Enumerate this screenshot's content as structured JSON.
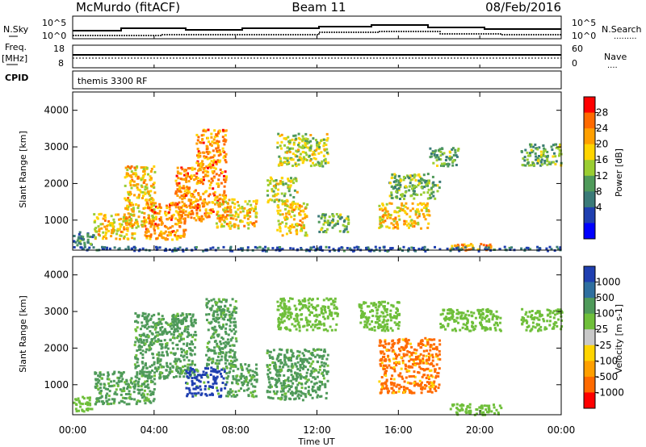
{
  "header": {
    "station": "McMurdo (fitACF)",
    "beam": "Beam 11",
    "date": "08/Feb/2016"
  },
  "noise_panel": {
    "left_label": "N.Sky",
    "right_label": "N.Search",
    "left_ticks": [
      "10^5",
      "10^0"
    ],
    "right_ticks": [
      "10^5",
      "10^0"
    ]
  },
  "freq_panel": {
    "left_label_line1": "Freq.",
    "left_label_line2": "[MHz]",
    "left_ticks": [
      "18",
      "8"
    ],
    "right_label": "Nave",
    "right_ticks": [
      "60",
      "0"
    ]
  },
  "cpid_panel": {
    "label": "CPID",
    "text": "themis 3300 RF"
  },
  "x_axis": {
    "label": "Time UT",
    "ticks": [
      "00:00",
      "04:00",
      "08:00",
      "12:00",
      "16:00",
      "20:00",
      "00:00"
    ]
  },
  "power_colorbar": {
    "label": "Power [dB]",
    "ticks": [
      "28",
      "24",
      "20",
      "16",
      "12",
      "8",
      "4"
    ],
    "colors": [
      "#ff0000",
      "#ff6a00",
      "#ff9f00",
      "#ffd400",
      "#9acd32",
      "#4f9a5a",
      "#3a7a78",
      "#1f3fb0",
      "#0000ff"
    ]
  },
  "velocity_colorbar": {
    "label": "Velocity [m s-1]",
    "ticks": [
      "1000",
      "500",
      "100",
      "25",
      "-25",
      "-100",
      "-500",
      "-1000"
    ],
    "colors": [
      "#1f3fb0",
      "#2f6f9f",
      "#4f9a5a",
      "#6fbf3a",
      "#c8c8c8",
      "#ffd400",
      "#ff9f00",
      "#ff6a00",
      "#ff0000"
    ]
  },
  "chart_data": [
    {
      "type": "heatmap",
      "name": "power",
      "ylabel": "Slant Range [km]",
      "xlabel": "Time UT",
      "ylim": [
        180,
        4500
      ],
      "xlim": [
        0,
        24
      ],
      "yticks": [
        "1000",
        "2000",
        "3000",
        "4000"
      ],
      "colorbar": "Power [dB]",
      "regions": [
        {
          "t0": 0.0,
          "t1": 1.0,
          "r0": 300,
          "r1": 700,
          "value": 8
        },
        {
          "t0": 1.0,
          "t1": 3.0,
          "r0": 500,
          "r1": 1200,
          "value": 20
        },
        {
          "t0": 2.5,
          "t1": 4.0,
          "r0": 800,
          "r1": 2500,
          "value": 20
        },
        {
          "t0": 3.5,
          "t1": 5.5,
          "r0": 500,
          "r1": 1500,
          "value": 24
        },
        {
          "t0": 5.0,
          "t1": 7.5,
          "r0": 1000,
          "r1": 2500,
          "value": 24
        },
        {
          "t0": 6.0,
          "t1": 7.5,
          "r0": 2500,
          "r1": 3500,
          "value": 24
        },
        {
          "t0": 7.0,
          "t1": 9.0,
          "r0": 800,
          "r1": 1600,
          "value": 20
        },
        {
          "t0": 9.5,
          "t1": 11.0,
          "r0": 1500,
          "r1": 2200,
          "value": 16
        },
        {
          "t0": 10.0,
          "t1": 11.5,
          "r0": 600,
          "r1": 1500,
          "value": 20
        },
        {
          "t0": 10.0,
          "t1": 12.5,
          "r0": 2500,
          "r1": 3400,
          "value": 16
        },
        {
          "t0": 12.0,
          "t1": 13.5,
          "r0": 700,
          "r1": 1200,
          "value": 12
        },
        {
          "t0": 15.0,
          "t1": 17.5,
          "r0": 800,
          "r1": 1500,
          "value": 20
        },
        {
          "t0": 15.5,
          "t1": 18.0,
          "r0": 1600,
          "r1": 2300,
          "value": 12
        },
        {
          "t0": 17.5,
          "t1": 19.0,
          "r0": 2500,
          "r1": 3000,
          "value": 12
        },
        {
          "t0": 18.5,
          "t1": 20.5,
          "r0": 200,
          "r1": 400,
          "value": 24
        },
        {
          "t0": 22.0,
          "t1": 24.0,
          "r0": 2500,
          "r1": 3100,
          "value": 12
        },
        {
          "t0": 0.0,
          "t1": 24.0,
          "r0": 180,
          "r1": 300,
          "value": 4
        }
      ]
    },
    {
      "type": "heatmap",
      "name": "velocity",
      "ylabel": "Slant Range [km]",
      "xlabel": "Time UT",
      "ylim": [
        180,
        4500
      ],
      "xlim": [
        0,
        24
      ],
      "yticks": [
        "1000",
        "2000",
        "3000",
        "4000"
      ],
      "colorbar": "Velocity [m s-1]",
      "regions": [
        {
          "t0": 0.0,
          "t1": 1.0,
          "r0": 300,
          "r1": 700,
          "value": 25
        },
        {
          "t0": 1.0,
          "t1": 4.0,
          "r0": 500,
          "r1": 1400,
          "value": 100
        },
        {
          "t0": 3.0,
          "t1": 6.0,
          "r0": 1200,
          "r1": 3000,
          "value": 100
        },
        {
          "t0": 5.5,
          "t1": 7.5,
          "r0": 700,
          "r1": 1500,
          "value": 1000
        },
        {
          "t0": 6.5,
          "t1": 8.0,
          "r0": 1500,
          "r1": 3400,
          "value": 100
        },
        {
          "t0": 7.5,
          "t1": 9.0,
          "r0": 700,
          "r1": 1600,
          "value": 100
        },
        {
          "t0": 10.0,
          "t1": 13.0,
          "r0": 2500,
          "r1": 3400,
          "value": 25
        },
        {
          "t0": 9.5,
          "t1": 12.5,
          "r0": 600,
          "r1": 2000,
          "value": 100
        },
        {
          "t0": 14.0,
          "t1": 16.0,
          "r0": 2500,
          "r1": 3300,
          "value": 25
        },
        {
          "t0": 15.0,
          "t1": 18.0,
          "r0": 800,
          "r1": 2300,
          "value": -500
        },
        {
          "t0": 18.0,
          "t1": 21.0,
          "r0": 2500,
          "r1": 3100,
          "value": 25
        },
        {
          "t0": 18.5,
          "t1": 21.0,
          "r0": 200,
          "r1": 500,
          "value": 25
        },
        {
          "t0": 22.0,
          "t1": 24.0,
          "r0": 2500,
          "r1": 3100,
          "value": 25
        }
      ]
    }
  ]
}
